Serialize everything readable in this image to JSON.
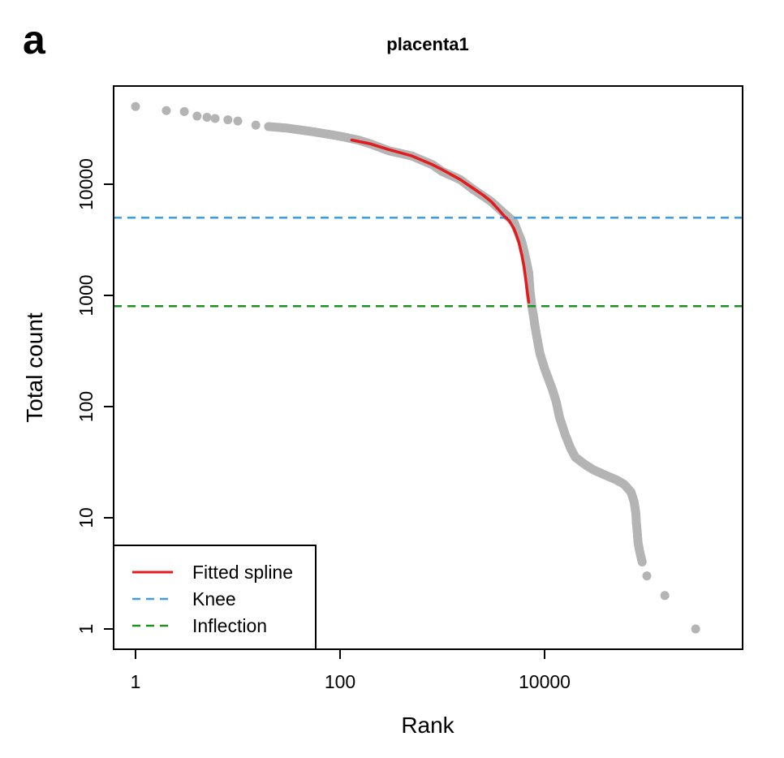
{
  "panel_label": "a",
  "chart_data": {
    "type": "scatter",
    "title": "placenta1",
    "xlabel": "Rank",
    "ylabel": "Total count",
    "x_scale": "log",
    "y_scale": "log",
    "xlim": [
      1,
      400000
    ],
    "ylim": [
      0.8,
      90000
    ],
    "x_ticks": [
      1,
      100,
      10000
    ],
    "x_tick_labels": [
      "1",
      "100",
      "10000"
    ],
    "y_ticks": [
      1,
      10,
      100,
      1000,
      10000
    ],
    "y_tick_labels": [
      "1",
      "10",
      "100",
      "1000",
      "10000"
    ],
    "grid": false,
    "legend_position": "bottom-left",
    "colors": {
      "points": "#b4b4b4",
      "spline": "#e41a1c",
      "knee": "#3a9ee8",
      "inflection": "#1f8f1f"
    },
    "series": [
      {
        "name": "",
        "kind": "points",
        "x": [
          1,
          2,
          3,
          4,
          5,
          6,
          8,
          10,
          15,
          20,
          30,
          50,
          80,
          100,
          150,
          200,
          300,
          500,
          800,
          1000,
          1500,
          2000,
          3000,
          4000,
          5000,
          6000,
          6500,
          7000,
          7200,
          7500,
          7800,
          8000,
          8200,
          8500,
          9000,
          10000,
          12000,
          13000,
          14000,
          16000,
          18000,
          20000,
          25000,
          30000,
          40000,
          50000,
          60000,
          70000,
          75000,
          78000,
          79000,
          80000,
          81000,
          82000,
          85000,
          90000,
          100000,
          150000,
          300000
        ],
        "y": [
          50000,
          46000,
          45000,
          41000,
          40000,
          39000,
          38000,
          37000,
          34000,
          33000,
          32000,
          30000,
          28000,
          27000,
          25000,
          23000,
          20000,
          18000,
          15000,
          13000,
          11000,
          9000,
          7000,
          5500,
          4600,
          3000,
          2200,
          1600,
          1100,
          800,
          650,
          550,
          480,
          400,
          300,
          220,
          140,
          110,
          80,
          55,
          42,
          35,
          30,
          27,
          24,
          22,
          20,
          17,
          14,
          11,
          9,
          8,
          7,
          6,
          5,
          4,
          3,
          2,
          1
        ]
      },
      {
        "name": "Fitted spline",
        "kind": "line",
        "x": [
          130,
          200,
          300,
          500,
          800,
          1000,
          1500,
          2000,
          2500,
          3000,
          3500,
          4000,
          4500,
          5000,
          5300,
          5600,
          6000,
          6300,
          6600,
          6800,
          7000
        ],
        "y": [
          25000,
          23000,
          20500,
          18000,
          15000,
          13500,
          11000,
          9200,
          8000,
          7000,
          6000,
          5200,
          4700,
          4000,
          3500,
          3000,
          2300,
          1800,
          1300,
          1050,
          870
        ]
      },
      {
        "name": "Knee",
        "kind": "hline",
        "y": 5000
      },
      {
        "name": "Inflection",
        "kind": "hline",
        "y": 800
      }
    ],
    "legend": [
      {
        "label": "Fitted spline",
        "style": "solid",
        "color_key": "spline"
      },
      {
        "label": "Knee",
        "style": "dashed",
        "color_key": "knee"
      },
      {
        "label": "Inflection",
        "style": "dashed",
        "color_key": "inflection"
      }
    ]
  }
}
